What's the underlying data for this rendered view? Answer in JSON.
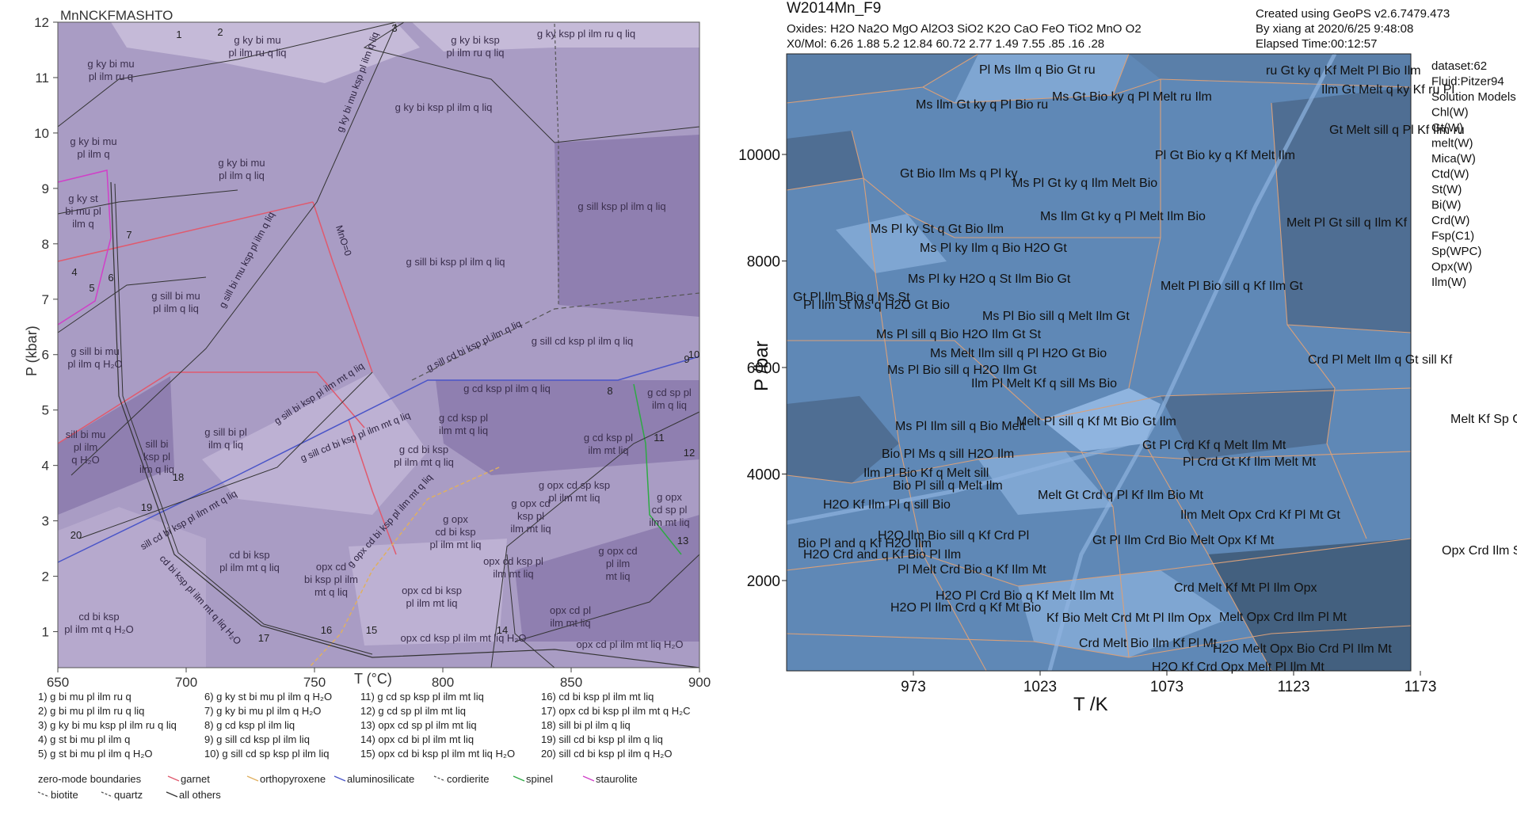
{
  "left": {
    "system_title": "MnNCKFMASHTO",
    "x_axis_label": "T (°C)",
    "y_axis_label": "P (kbar)",
    "x_ticks": [
      "650",
      "700",
      "750",
      "800",
      "850",
      "900"
    ],
    "y_ticks": [
      "1",
      "2",
      "3",
      "4",
      "5",
      "6",
      "7",
      "8",
      "9",
      "10",
      "11",
      "12"
    ],
    "fields": [
      {
        "name": "field-g-ky-bi-mu-pl-ilm-ru-q",
        "lines": [
          "g ky bi mu",
          "pl ilm ru q"
        ]
      },
      {
        "name": "field-g-ky-bi-mu-pl-ilm-ru-q-liq",
        "lines": [
          "g ky bi mu",
          "pl ilm ru q liq"
        ]
      },
      {
        "name": "field-g-ky-bi-ksp-pl-ilm-ru-q-liq",
        "lines": [
          "g ky bi ksp",
          "pl ilm ru q liq"
        ]
      },
      {
        "name": "field-g-ky-ksp-pl-ilm-ru-q-liq",
        "lines": [
          "g ky ksp pl ilm ru q liq"
        ]
      },
      {
        "name": "field-g-ky-bi-ksp-pl-ilm-q-liq",
        "lines": [
          "g ky bi ksp pl ilm q liq"
        ]
      },
      {
        "name": "field-g-ky-bi-mu-pl-ilm-q",
        "lines": [
          "g ky bi mu",
          "pl ilm q"
        ]
      },
      {
        "name": "field-g-ky-bi-mu-pl-ilm-q-liq",
        "lines": [
          "g ky bi mu",
          "pl ilm q liq"
        ]
      },
      {
        "name": "field-g-ky-st-bi-mu-pl-ilm-q",
        "lines": [
          "g ky st",
          "bi mu pl",
          "ilm q"
        ]
      },
      {
        "name": "field-g-sill-ksp-pl-ilm-q-liq",
        "lines": [
          "g sill ksp pl ilm q liq"
        ]
      },
      {
        "name": "field-g-sill-bi-ksp-pl-ilm-q-liq",
        "lines": [
          "g sill bi ksp pl ilm q liq"
        ]
      },
      {
        "name": "field-g-sill-bi-mu-pl-ilm-q-liq",
        "lines": [
          "g sill bi mu",
          "pl ilm q liq"
        ]
      },
      {
        "name": "field-g-sill-bi-mu-pl-ilm-q-h2o",
        "lines": [
          "g sill bi mu",
          "pl ilm q H₂O"
        ]
      },
      {
        "name": "field-g-sill-cd-ksp-pl-ilm-q-liq",
        "lines": [
          "g sill cd ksp pl ilm q liq"
        ]
      },
      {
        "name": "field-g-cd-ksp-pl-ilm-q-liq",
        "lines": [
          "g cd ksp pl ilm q liq"
        ]
      },
      {
        "name": "field-g-cd-sp-pl-ilm-q-liq",
        "lines": [
          "g cd sp pl",
          "ilm q liq"
        ]
      },
      {
        "name": "field-sill-bi-mu-pl-ilm-q-h2o",
        "lines": [
          "sill bi mu",
          "pl ilm",
          "q H₂O"
        ]
      },
      {
        "name": "field-sill-bi-ksp-pl-ilm-q-liq",
        "lines": [
          "sill bi",
          "ksp pl",
          "ilm q liq"
        ]
      },
      {
        "name": "field-g-sill-bi-pl-ilm-q-liq",
        "lines": [
          "g sill bi pl",
          "ilm q liq"
        ]
      },
      {
        "name": "field-g-cd-ksp-pl-ilm-mt-q-liq",
        "lines": [
          "g cd ksp pl",
          "ilm mt q liq"
        ]
      },
      {
        "name": "field-g-cd-bi-ksp-pl-ilm-mt-q-liq",
        "lines": [
          "g cd bi ksp",
          "pl ilm mt q liq"
        ]
      },
      {
        "name": "field-g-cd-ksp-pl-ilm-mt-liq",
        "lines": [
          "g cd ksp pl",
          "ilm mt liq"
        ]
      },
      {
        "name": "field-g-opx-cd-sp-ksp-pl-ilm-mt-liq",
        "lines": [
          "g opx cd sp ksp",
          "pl ilm mt liq"
        ]
      },
      {
        "name": "field-g-opx-cd-sp-pl-ilm-mt-liq",
        "lines": [
          "g opx",
          "cd sp pl",
          "ilm mt liq"
        ]
      },
      {
        "name": "field-g-opx-cd-ksp-pl-ilm-mt-liq",
        "lines": [
          "g opx cd",
          "ksp pl",
          "ilm mt liq"
        ]
      },
      {
        "name": "field-g-opx-cd-bi-ksp-pl-ilm-mt-liq",
        "lines": [
          "g opx",
          "cd bi ksp",
          "pl ilm mt liq"
        ]
      },
      {
        "name": "field-cd-bi-ksp-pl-ilm-mt-q-liq",
        "lines": [
          "cd bi ksp",
          "pl ilm mt q liq"
        ]
      },
      {
        "name": "field-opx-cd-bi-ksp-pl-ilm-mt-q-liq",
        "lines": [
          "opx cd",
          "bi ksp pl ilm",
          "mt q liq"
        ]
      },
      {
        "name": "field-opx-cd-ksp-pl-ilm-mt-liq",
        "lines": [
          "opx cd ksp pl",
          "ilm mt liq"
        ]
      },
      {
        "name": "field-g-opx-cd-pl-ilm-mt-liq",
        "lines": [
          "g opx cd",
          "pl ilm",
          "mt liq"
        ]
      },
      {
        "name": "field-opx-cd-bi-ksp-pl-ilm-mt-liq",
        "lines": [
          "opx cd bi ksp",
          "pl ilm mt liq"
        ]
      },
      {
        "name": "field-opx-cd-pl-ilm-mt-liq",
        "lines": [
          "opx cd pl",
          "ilm mt liq"
        ]
      },
      {
        "name": "field-cd-bi-ksp-pl-ilm-mt-q-h2o",
        "lines": [
          "cd bi ksp",
          "pl ilm mt q H₂O"
        ]
      },
      {
        "name": "field-opx-cd-ksp-pl-ilm-mt-liq-h2o",
        "lines": [
          "opx cd ksp pl ilm mt liq H₂O"
        ]
      },
      {
        "name": "field-opx-cd-pl-ilm-mt-liq-h2o",
        "lines": [
          "opx cd pl ilm mt liq H₂O"
        ]
      }
    ],
    "boundary_labels": [
      "g ky bi mu ksp pl ilm q liq",
      "g sill bi mu ksp pl ilm q liq",
      "MnO=0",
      "g sill cd bi ksp pl ilm q liq",
      "g sill bi ksp pl ilm mt q liq",
      "g sill cd bi ksp pl ilm mt q liq",
      "sill cd bi ksp pl ilm mt q liq",
      "cd bi ksp pl ilm mt q liq H₂O",
      "g opx cd bi ksp pl ilm mt q liq"
    ],
    "small_field_numbers": [
      "1",
      "2",
      "3",
      "4",
      "5",
      "6",
      "7",
      "8",
      "9",
      "10",
      "11",
      "12",
      "13",
      "14",
      "15",
      "16",
      "17",
      "18",
      "19",
      "20"
    ],
    "legend": [
      "1) g bi mu pl ilm ru q",
      "2) g bi mu pl ilm ru q liq",
      "3) g ky bi mu ksp pl ilm ru q liq",
      "4) g st bi mu pl ilm q",
      "5) g st bi mu pl ilm q H₂O",
      "6) g ky st bi mu pl ilm q H₂O",
      "7) g ky bi mu pl ilm q H₂O",
      "8) g cd ksp pl ilm liq",
      "9) g sill cd ksp pl ilm liq",
      "10) g sill cd sp ksp pl ilm liq",
      "11) g cd sp ksp pl ilm mt liq",
      "12) g cd sp pl ilm mt liq",
      "13) opx cd sp pl ilm mt liq",
      "14) opx cd bi pl ilm mt liq",
      "15) opx cd bi ksp pl ilm mt liq H₂O",
      "16) cd bi ksp pl ilm mt liq",
      "17) opx cd bi ksp pl ilm mt q H₂C",
      "18) sill bi pl ilm q liq",
      "19) sill cd bi ksp pl ilm q liq",
      "20) sill cd bi ksp pl ilm q H₂O"
    ],
    "line_key": {
      "title": "zero-mode boundaries",
      "items": [
        {
          "label": "garnet",
          "color": "#e05a6e"
        },
        {
          "label": "orthopyroxene",
          "color": "#e0b060"
        },
        {
          "label": "aluminosilicate",
          "color": "#4a55c8"
        },
        {
          "label": "cordierite",
          "color": "#555555"
        },
        {
          "label": "spinel",
          "color": "#2eaa44"
        },
        {
          "label": "staurolite",
          "color": "#d040c8"
        },
        {
          "label": "biotite",
          "color": "#555555"
        },
        {
          "label": "quartz",
          "color": "#555555"
        },
        {
          "label": "all others",
          "color": "#333333"
        }
      ]
    }
  },
  "right": {
    "title": "W2014Mn_F9",
    "oxides": "Oxides: H2O Na2O MgO Al2O3 SiO2 K2O CaO FeO TiO2 MnO O2",
    "x0mol": "X0/Mol: 6.26 1.88 5.2 12.84 60.72 2.77 1.49 7.55 .85 .16 .28",
    "created": "Created using GeoPS v2.6.7479.473",
    "by": "By xiang at 2020/6/25 9:48:08",
    "elapsed": "Elapsed Time:00:12:57",
    "x_axis_label": "T /K",
    "y_axis_label": "P /bar",
    "x_ticks": [
      "973",
      "1023",
      "1073",
      "1123",
      "1173"
    ],
    "y_ticks": [
      "2000",
      "4000",
      "6000",
      "8000",
      "10000"
    ],
    "info_list": [
      "dataset:62",
      "Fluid:Pitzer94",
      "Solution Models",
      "Chl(W)",
      "Gt(W)",
      "melt(W)",
      "Mica(W)",
      "Ctd(W)",
      "St(W)",
      "Bi(W)",
      "Crd(W)",
      "Fsp(C1)",
      "Sp(WPC)",
      "Opx(W)",
      "Ilm(W)"
    ],
    "fields": [
      "Pl Ms Ilm q Bio Gt ru",
      "ru Gt ky q Kf Melt Pl Bio Ilm",
      "Ms Ilm Gt ky q Pl Bio ru",
      "Ms Gt Bio ky q Pl Melt ru Ilm",
      "Ilm Gt Melt q ky Kf ru Pl",
      "Gt Melt sill q Pl Kf Ilm ru",
      "Pl Gt Bio ky q Kf Melt Ilm",
      "Gt Bio Ilm Ms q Pl ky",
      "Ms Pl Gt ky q Ilm Melt Bio",
      "Ms Ilm Gt ky q Pl Melt Ilm Bio",
      "Ms Pl ky St q Gt Bio Ilm",
      "Melt Pl Gt sill q Ilm Kf",
      "Ms Pl ky Ilm q Bio H2O Gt",
      "Ms Pl ky H2O q St Ilm Bio Gt",
      "Melt Pl Bio sill q Kf Ilm Gt",
      "Gt Pl Ilm Bio q Ms St",
      "Pl Ilm St Ms q H2O Gt Bio",
      "Ms Pl Bio sill q Melt Ilm Gt",
      "Ms Pl sill q Bio H2O Ilm Gt St",
      "Ms Melt Ilm sill q Pl H2O Gt Bio",
      "Crd Pl Melt Ilm q Gt sill Kf",
      "Ms Pl Bio sill q H2O Ilm Gt",
      "Ilm Pl Melt Kf q sill Ms Bio",
      "Ms Pl Ilm sill q Bio Melt",
      "Melt Pl sill q Kf Mt Bio Gt Ilm",
      "Melt Kf Sp Gt Pl Ilm C",
      "Gt Pl Crd Kf q Melt Ilm Mt",
      "Bio Pl Ms q sill H2O Ilm",
      "Pl Crd Gt Kf Ilm Melt Mt",
      "Ilm Pl Bio Kf q Melt sill",
      "Bio Pl sill q Melt Ilm",
      "Melt Gt Crd q Pl Kf Ilm Bio Mt",
      "H2O Kf Ilm Pl q sill Bio",
      "Ilm Melt Opx Crd Kf Pl Mt Gt",
      "H2O Ilm Bio sill q Kf Crd Pl",
      "Gt Pl Ilm Crd Bio Melt Opx Kf Mt",
      "Bio Pl and q Kf H2O Ilm",
      "Opx Crd Ilm Sp Pl Melt",
      "H2O Crd and q Kf Bio Pl Ilm",
      "Pl Melt Crd Bio q Kf Ilm Mt",
      "Crd Melt Kf Mt Pl Ilm Opx",
      "H2O Pl Crd Bio q Kf Melt Ilm Mt",
      "H2O Pl Ilm Crd q Kf Mt Bio",
      "Kf Bio Melt Crd Mt Pl Ilm Opx",
      "Melt Opx Crd Ilm Pl Mt",
      "Crd Melt Bio Ilm Kf Pl Mt",
      "H2O Melt Opx Bio Crd Pl Ilm Mt",
      "H2O Kf Crd Opx Melt Pl Ilm Mt"
    ]
  },
  "colors": {
    "left_field_base": "#a99cc4",
    "left_field_light": "#c5bad8",
    "left_field_dark": "#8f7fb0",
    "right_field_base": "#5f88b6",
    "right_field_light": "#7fa6d2",
    "right_field_dark": "#4f6e93",
    "right_boundary": "#d9a07a"
  }
}
